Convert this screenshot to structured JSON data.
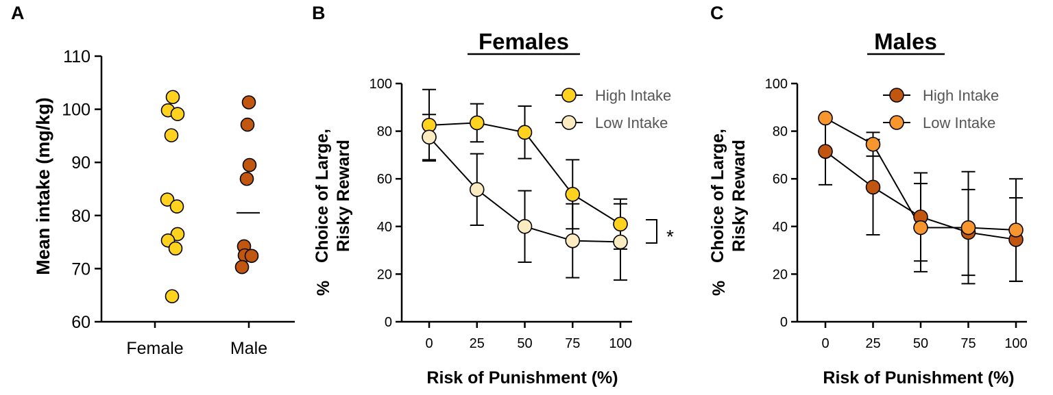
{
  "panels": {
    "a": {
      "letter": "A"
    },
    "b": {
      "letter": "B"
    },
    "c": {
      "letter": "C"
    }
  },
  "chart_data": [
    {
      "type": "scatter",
      "title": "",
      "ylabel": "Mean intake (mg/kg)",
      "xlabel": "",
      "ylim": [
        60,
        110
      ],
      "yticks": [
        "60",
        "70",
        "80",
        "90",
        "100",
        "110"
      ],
      "categories": [
        "Female",
        "Male"
      ],
      "series": [
        {
          "name": "Female",
          "color": "#FFD21F",
          "values": [
            102.3,
            99.8,
            99.1,
            95.1,
            83.0,
            81.7,
            76.5,
            75.3,
            73.8,
            64.8
          ]
        },
        {
          "name": "Male",
          "color": "#C0560F",
          "values": [
            101.3,
            97.1,
            89.5,
            86.9,
            74.2,
            72.5,
            72.4,
            70.3
          ]
        }
      ],
      "median_line": 80.5
    },
    {
      "type": "line",
      "title": "Females",
      "xlabel": "Risk of Punishment (%)",
      "ylabel_line1": "Choice of Large,",
      "ylabel_line2": "Risky  Reward",
      "ylabel_prefix": "%",
      "x": [
        0,
        25,
        50,
        75,
        100
      ],
      "xticks": [
        "0",
        "25",
        "50",
        "75",
        "100"
      ],
      "yticks": [
        "0",
        "20",
        "40",
        "60",
        "80",
        "100"
      ],
      "ylim": [
        0,
        100
      ],
      "annotation": "*",
      "series": [
        {
          "name": "High Intake",
          "color": "#FFD21F",
          "values": [
            82.5,
            83.5,
            79.5,
            53.5,
            41.0
          ],
          "err": [
            15.0,
            8.0,
            11.0,
            14.5,
            10.5
          ]
        },
        {
          "name": "Low Intake",
          "color": "#FAEBC0",
          "values": [
            77.5,
            55.5,
            40.0,
            34.0,
            33.5
          ],
          "err": [
            9.5,
            15.0,
            15.0,
            15.5,
            16.0
          ]
        }
      ]
    },
    {
      "type": "line",
      "title": "Males",
      "xlabel": "Risk of Punishment (%)",
      "ylabel_line1": "Choice of Large,",
      "ylabel_line2": "Risky  Reward",
      "ylabel_prefix": "%",
      "x": [
        0,
        25,
        50,
        75,
        100
      ],
      "xticks": [
        "0",
        "25",
        "50",
        "75",
        "100"
      ],
      "yticks": [
        "0",
        "20",
        "40",
        "60",
        "80",
        "100"
      ],
      "ylim": [
        0,
        100
      ],
      "series": [
        {
          "name": "High Intake",
          "color": "#C0560F",
          "values": [
            71.5,
            56.5,
            44.0,
            37.5,
            34.5
          ],
          "err": [
            14.0,
            20.0,
            18.5,
            18.0,
            17.5
          ]
        },
        {
          "name": "Low Intake",
          "color": "#F7952E",
          "values": [
            85.5,
            74.5,
            39.5,
            39.5,
            38.5
          ],
          "err": [
            0.0,
            5.0,
            18.5,
            23.5,
            21.5
          ]
        }
      ]
    }
  ]
}
